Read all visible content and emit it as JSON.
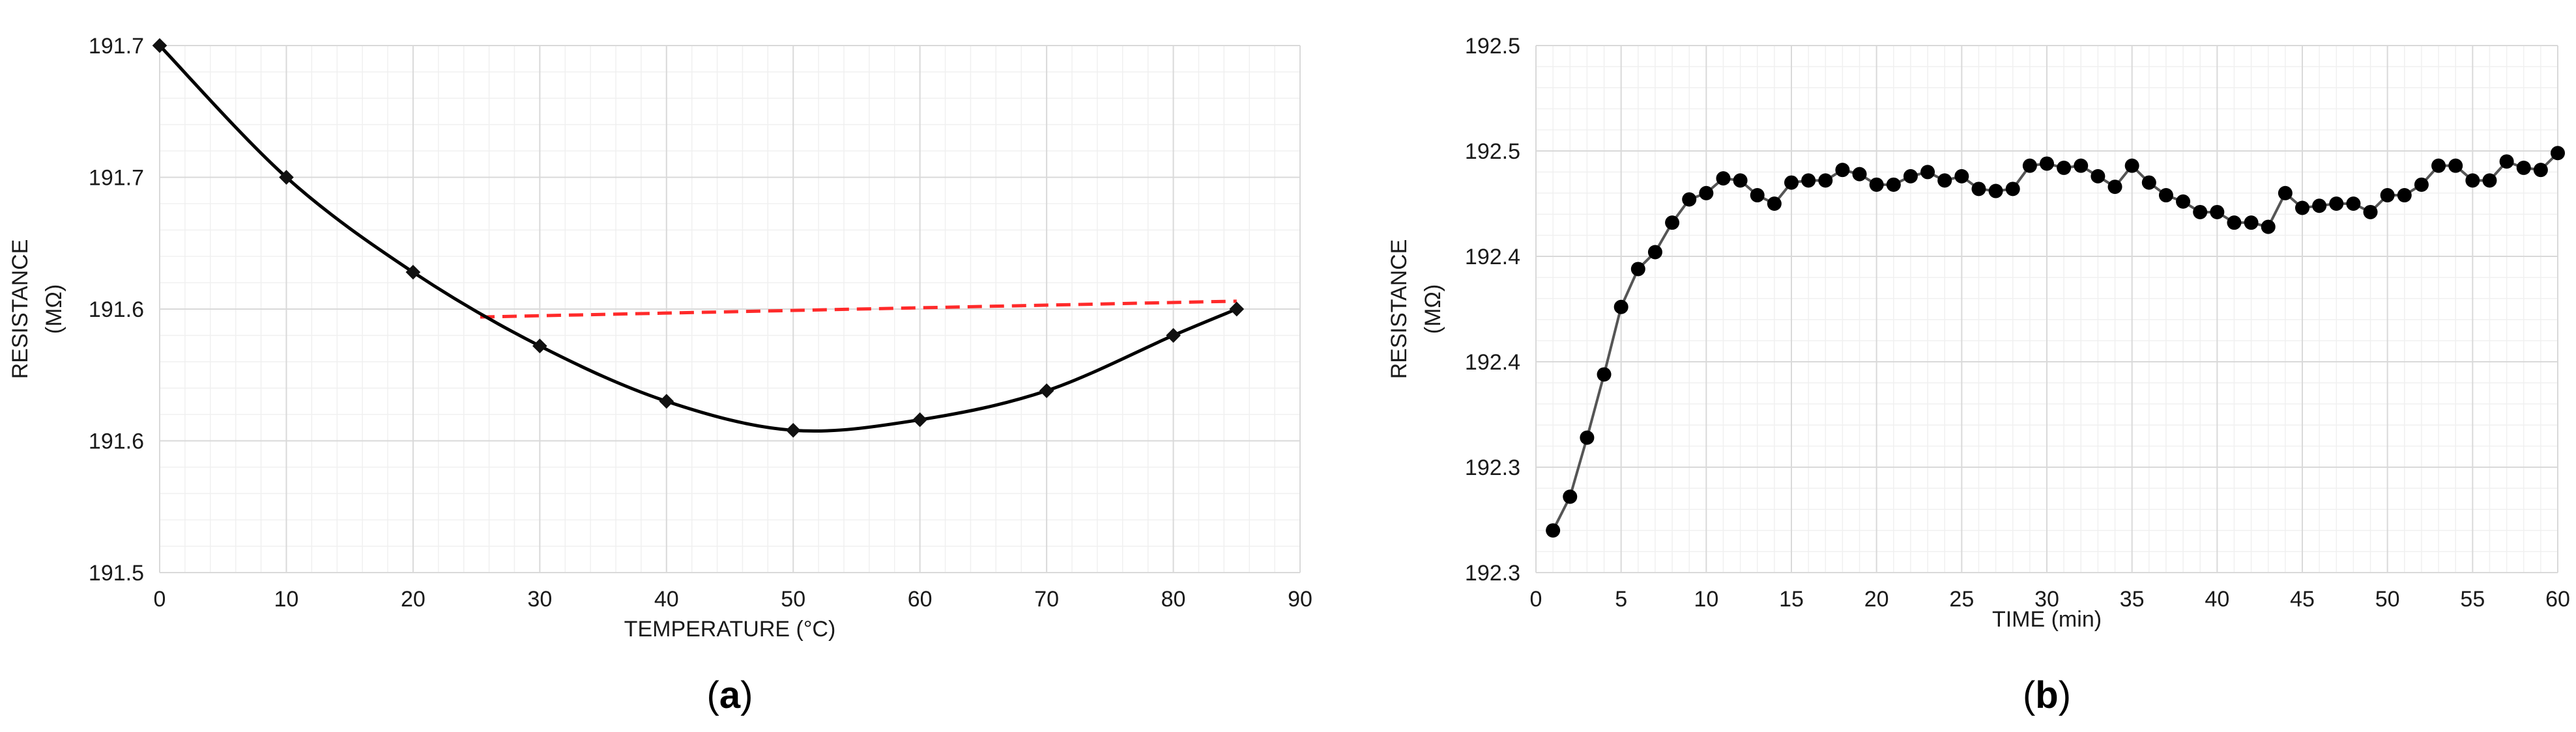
{
  "chart_data": [
    {
      "type": "line",
      "panel_label": "(a)",
      "xlabel": "TEMPERATURE (°C)",
      "ylabel": "RESISTANCE (MΩ)",
      "xlim": [
        0,
        90
      ],
      "ylim": [
        191.5,
        191.7
      ],
      "xticks": [
        0,
        10,
        20,
        30,
        40,
        50,
        60,
        70,
        80,
        90
      ],
      "xtick_labels": [
        "0",
        "10",
        "20",
        "30",
        "40",
        "50",
        "60",
        "70",
        "80",
        "90"
      ],
      "yticks": [
        191.5,
        191.55,
        191.6,
        191.65,
        191.7
      ],
      "ytick_labels": [
        "191.5",
        "191.6",
        "191.6",
        "191.7",
        "191.7"
      ],
      "grid": true,
      "series": [
        {
          "x": [
            0,
            10,
            20,
            30,
            40,
            50,
            60,
            70,
            80,
            85
          ],
          "y": [
            191.7,
            191.65,
            191.614,
            191.586,
            191.565,
            191.554,
            191.558,
            191.569,
            191.59,
            191.6
          ],
          "color": "#000000",
          "marker": "diamond"
        }
      ],
      "annotations": [
        {
          "type": "dashed-line",
          "x": [
            25.3,
            85
          ],
          "y": [
            191.597,
            191.603
          ],
          "color": "#ff2a2a"
        }
      ]
    },
    {
      "type": "line",
      "panel_label": "(b)",
      "xlabel": "TIME (min)",
      "ylabel": "RESISTANCE (MΩ)",
      "xlim": [
        0,
        60
      ],
      "ylim": [
        192.25,
        192.5
      ],
      "xticks": [
        0,
        5,
        10,
        15,
        20,
        25,
        30,
        35,
        40,
        45,
        50,
        55,
        60
      ],
      "xtick_labels": [
        "0",
        "5",
        "10",
        "15",
        "20",
        "25",
        "30",
        "35",
        "40",
        "45",
        "50",
        "55",
        "60"
      ],
      "yticks": [
        192.25,
        192.3,
        192.35,
        192.4,
        192.45,
        192.5
      ],
      "ytick_labels": [
        "192.3",
        "192.3",
        "192.4",
        "192.4",
        "192.5",
        "192.5"
      ],
      "grid": true,
      "series": [
        {
          "x": [
            1,
            2,
            3,
            4,
            5,
            6,
            7,
            8,
            9,
            10,
            11,
            12,
            13,
            14,
            15,
            16,
            17,
            18,
            19,
            20,
            21,
            22,
            23,
            24,
            25,
            26,
            27,
            28,
            29,
            30,
            31,
            32,
            33,
            34,
            35,
            36,
            37,
            38,
            39,
            40,
            41,
            42,
            43,
            44,
            45,
            46,
            47,
            48,
            49,
            50,
            51,
            52,
            53,
            54,
            55,
            56,
            57,
            58,
            59,
            60
          ],
          "y": [
            192.27,
            192.286,
            192.314,
            192.344,
            192.376,
            192.394,
            192.402,
            192.416,
            192.427,
            192.43,
            192.437,
            192.436,
            192.429,
            192.425,
            192.435,
            192.436,
            192.436,
            192.441,
            192.439,
            192.434,
            192.434,
            192.438,
            192.44,
            192.436,
            192.438,
            192.432,
            192.431,
            192.432,
            192.443,
            192.444,
            192.442,
            192.443,
            192.438,
            192.433,
            192.443,
            192.435,
            192.429,
            192.426,
            192.421,
            192.421,
            192.416,
            192.416,
            192.414,
            192.43,
            192.423,
            192.424,
            192.425,
            192.425,
            192.421,
            192.429,
            192.429,
            192.434,
            192.443,
            192.443,
            192.436,
            192.436,
            192.445,
            192.442,
            192.441,
            192.449
          ],
          "color": "#555555",
          "marker": "circle"
        }
      ]
    }
  ]
}
